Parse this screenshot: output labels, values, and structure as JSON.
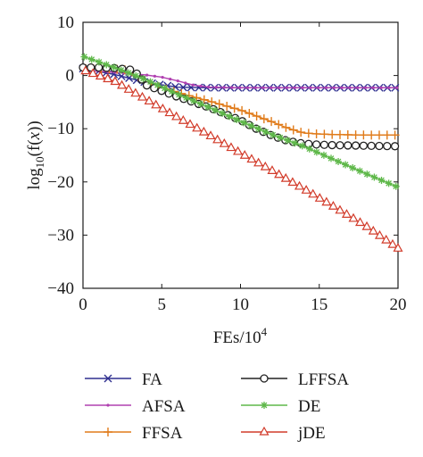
{
  "chart_data": {
    "type": "line",
    "xlabel_base": "FEs/10",
    "xlabel_exp": "4",
    "ylabel_pre": "log",
    "ylabel_sub": "10",
    "ylabel_open": "(f(",
    "ylabel_var": "x",
    "ylabel_close": "))",
    "xlim": [
      0,
      20
    ],
    "ylim": [
      -40,
      10
    ],
    "x_ticks": [
      0,
      5,
      10,
      15,
      20
    ],
    "y_ticks": [
      10,
      0,
      -10,
      -20,
      -30,
      -40
    ],
    "grid": false,
    "legend_position": "below",
    "series": [
      {
        "name": "FA",
        "color": "#2e2e8f",
        "marker": "x",
        "x": [
          0,
          2,
          4,
          6,
          8,
          10,
          12,
          14,
          16,
          18,
          20
        ],
        "y": [
          1.3,
          0.2,
          -1.3,
          -2.2,
          -2.3,
          -2.3,
          -2.3,
          -2.3,
          -2.3,
          -2.3,
          -2.3
        ]
      },
      {
        "name": "AFSA",
        "color": "#b040b0",
        "marker": "dot",
        "x": [
          0,
          2,
          4,
          5,
          6,
          7,
          8,
          10,
          12,
          14,
          16,
          18,
          20
        ],
        "y": [
          1.0,
          0.6,
          0.1,
          -0.3,
          -1.0,
          -1.8,
          -2.2,
          -2.3,
          -2.3,
          -2.3,
          -2.3,
          -2.3,
          -2.3
        ]
      },
      {
        "name": "FFSA",
        "color": "#e07b1a",
        "marker": "plus",
        "x": [
          0,
          2,
          3,
          3.4,
          4,
          6,
          8,
          10,
          12,
          13,
          14,
          15,
          16,
          18,
          20
        ],
        "y": [
          1.3,
          1.2,
          1.0,
          0.0,
          -1.5,
          -3.2,
          -4.8,
          -6.5,
          -8.7,
          -9.9,
          -10.8,
          -11.0,
          -11.1,
          -11.2,
          -11.2
        ]
      },
      {
        "name": "LFFSA",
        "color": "#222222",
        "marker": "circle",
        "x": [
          0,
          1,
          2,
          3,
          3.5,
          4,
          6,
          8,
          10,
          11,
          12,
          13,
          14,
          15,
          16,
          18,
          20
        ],
        "y": [
          1.5,
          1.5,
          1.4,
          1.1,
          0.2,
          -1.8,
          -4.0,
          -6.0,
          -8.4,
          -10.0,
          -11.3,
          -12.3,
          -12.8,
          -13.0,
          -13.1,
          -13.2,
          -13.3
        ]
      },
      {
        "name": "DE",
        "color": "#5fb84a",
        "marker": "asterisk",
        "x": [
          0,
          2,
          4,
          6,
          8,
          10,
          12,
          14,
          16,
          18,
          20
        ],
        "y": [
          3.6,
          1.5,
          -0.8,
          -3.5,
          -6.0,
          -8.6,
          -11.1,
          -13.3,
          -15.9,
          -18.5,
          -21.0
        ]
      },
      {
        "name": "jDE",
        "color": "#d23b2a",
        "marker": "triangle",
        "x": [
          0,
          2,
          4,
          6,
          8,
          10,
          12,
          14,
          16,
          18,
          20
        ],
        "y": [
          1.0,
          -1.1,
          -4.5,
          -7.9,
          -11.2,
          -14.6,
          -17.9,
          -21.3,
          -24.8,
          -28.4,
          -32.5
        ]
      }
    ]
  }
}
